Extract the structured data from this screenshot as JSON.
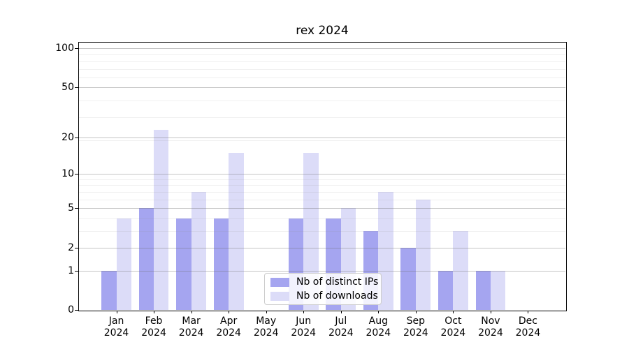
{
  "title": "rex 2024",
  "chart_data": {
    "type": "bar",
    "categories": [
      "Jan",
      "Feb",
      "Mar",
      "Apr",
      "May",
      "Jun",
      "Jul",
      "Aug",
      "Sep",
      "Oct",
      "Nov",
      "Dec"
    ],
    "year": "2024",
    "series": [
      {
        "name": "Nb of distinct IPs",
        "color": "#a5a5f0",
        "values": [
          1,
          5,
          4,
          4,
          0,
          4,
          4,
          3,
          2,
          1,
          1,
          0
        ]
      },
      {
        "name": "Nb of downloads",
        "color": "#dcdcf8",
        "values": [
          4,
          23,
          7,
          15,
          0,
          15,
          5,
          7,
          6,
          3,
          1,
          0
        ]
      }
    ],
    "ylabel": "",
    "xlabel": "",
    "yticks": [
      0,
      1,
      2,
      5,
      10,
      20,
      50,
      100
    ],
    "yscale": "log1p",
    "ylim": [
      0,
      110
    ],
    "grid": "major-and-minor, horizontal only",
    "legend_position": "lower center"
  }
}
